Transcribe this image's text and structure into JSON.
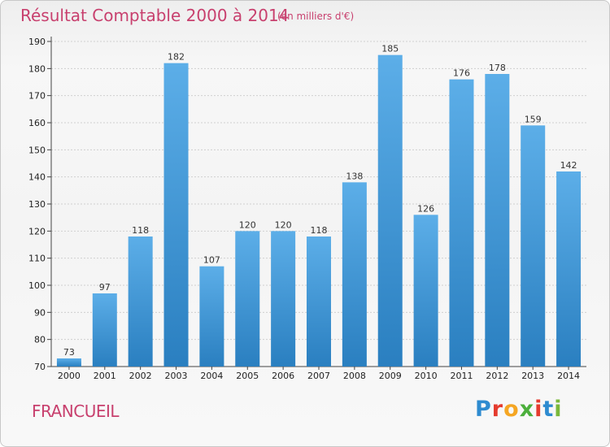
{
  "header": {
    "title": "Résultat Comptable 2000 à 2014",
    "subtitle": "(en milliers d'€)"
  },
  "footer": {
    "commune": "FRANCUEIL",
    "logo": [
      "P",
      "r",
      "o",
      "x",
      "i",
      "t",
      "i"
    ]
  },
  "colors": {
    "accent": "#c8406e",
    "bar_top": "#5caee8",
    "bar_bottom": "#2a7fc0"
  },
  "chart_data": {
    "type": "bar",
    "title": "Résultat Comptable 2000 à 2014",
    "subtitle": "(en milliers d'€)",
    "categories": [
      "2000",
      "2001",
      "2002",
      "2003",
      "2004",
      "2005",
      "2006",
      "2007",
      "2008",
      "2009",
      "2010",
      "2011",
      "2012",
      "2013",
      "2014"
    ],
    "values": [
      73,
      97,
      118,
      182,
      107,
      120,
      120,
      118,
      138,
      185,
      126,
      176,
      178,
      159,
      142
    ],
    "ylim": [
      70,
      190
    ],
    "yticks": [
      70,
      80,
      90,
      100,
      110,
      120,
      130,
      140,
      150,
      160,
      170,
      180,
      190
    ],
    "xlabel": "",
    "ylabel": "",
    "grid": true
  }
}
